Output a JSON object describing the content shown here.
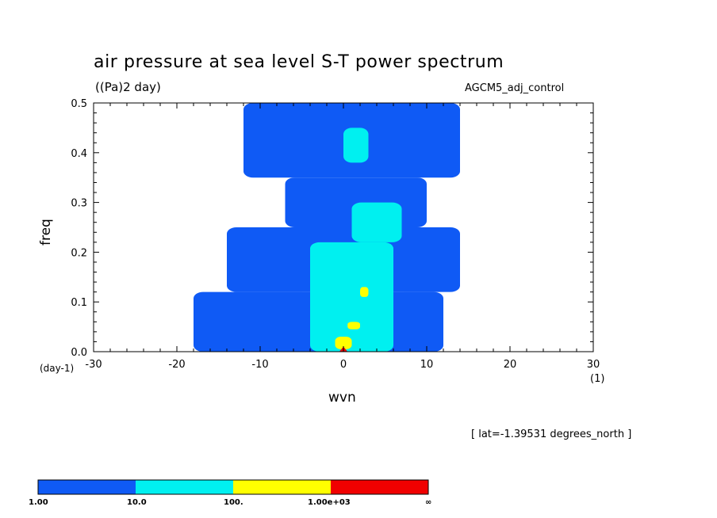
{
  "chart_data": {
    "type": "heatmap",
    "title": "air pressure at sea level S-T power spectrum",
    "units": "((Pa)2 day)",
    "model": "AGCM5_adj_control",
    "xlabel": "wvn",
    "xunit": "(1)",
    "ylabel": "freq",
    "yunit": "(day-1)",
    "xlim": [
      -30,
      30
    ],
    "ylim": [
      0.0,
      0.5
    ],
    "xticks": [
      "-30",
      "-20",
      "-10",
      "0",
      "10",
      "20",
      "30"
    ],
    "yticks": [
      "0.0",
      "0.1",
      "0.2",
      "0.3",
      "0.4",
      "0.5"
    ],
    "annotation": "[ lat=-1.39531 degrees_north ]",
    "colorbar": {
      "levels": [
        "1.00",
        "10.0",
        "100.",
        "1.00e+03",
        "∞"
      ],
      "colors": [
        "#0f5af5",
        "#00f0f0",
        "#ffff00",
        "#f00000"
      ]
    },
    "regions": [
      {
        "level": 1,
        "x_range": [
          -18,
          12
        ],
        "y_range": [
          0.0,
          0.12
        ]
      },
      {
        "level": 1,
        "x_range": [
          -14,
          14
        ],
        "y_range": [
          0.12,
          0.25
        ]
      },
      {
        "level": 1,
        "x_range": [
          -7,
          10
        ],
        "y_range": [
          0.25,
          0.35
        ]
      },
      {
        "level": 1,
        "x_range": [
          -12,
          14
        ],
        "y_range": [
          0.35,
          0.5
        ]
      },
      {
        "level": 2,
        "x_range": [
          -4,
          6
        ],
        "y_range": [
          0.0,
          0.22
        ]
      },
      {
        "level": 2,
        "x_range": [
          1,
          7
        ],
        "y_range": [
          0.22,
          0.3
        ]
      },
      {
        "level": 2,
        "x_range": [
          0,
          3
        ],
        "y_range": [
          0.38,
          0.45
        ]
      },
      {
        "level": 3,
        "x_range": [
          -1,
          1
        ],
        "y_range": [
          0.005,
          0.03
        ]
      },
      {
        "level": 3,
        "x_range": [
          0.5,
          2
        ],
        "y_range": [
          0.045,
          0.06
        ]
      },
      {
        "level": 3,
        "x_range": [
          2,
          3
        ],
        "y_range": [
          0.11,
          0.13
        ]
      },
      {
        "level": 4,
        "x_range": [
          -0.5,
          0.5
        ],
        "y_range": [
          0.0,
          0.01
        ]
      }
    ]
  }
}
